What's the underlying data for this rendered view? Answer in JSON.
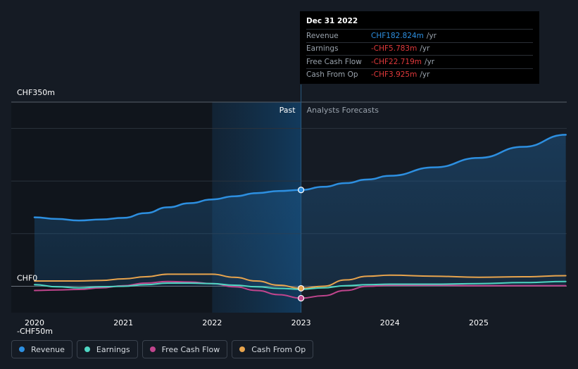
{
  "chart_data": {
    "type": "line",
    "x_axis_ticks": [
      "2020",
      "2021",
      "2022",
      "2023",
      "2024",
      "2025"
    ],
    "y_axis_labels": [
      "CHF350m",
      "CHF0",
      "-CHF50m"
    ],
    "ylim": [
      -50,
      350
    ],
    "xlim": [
      2019.75,
      2025.98
    ],
    "divider_year": 2023.0,
    "region_labels": {
      "past": "Past",
      "forecast": "Analysts Forecasts"
    },
    "series": [
      {
        "name": "Revenue",
        "color": "#2d8fe0",
        "points": [
          [
            2020.0,
            131
          ],
          [
            2020.25,
            128
          ],
          [
            2020.5,
            125
          ],
          [
            2020.75,
            127
          ],
          [
            2021.0,
            130
          ],
          [
            2021.25,
            139
          ],
          [
            2021.5,
            150
          ],
          [
            2021.75,
            158
          ],
          [
            2022.0,
            165
          ],
          [
            2022.25,
            171
          ],
          [
            2022.5,
            177
          ],
          [
            2022.75,
            181
          ],
          [
            2023.0,
            183
          ],
          [
            2023.25,
            189
          ],
          [
            2023.5,
            196
          ],
          [
            2023.75,
            203
          ],
          [
            2024.0,
            210
          ],
          [
            2024.5,
            226
          ],
          [
            2025.0,
            244
          ],
          [
            2025.5,
            265
          ],
          [
            2025.98,
            288
          ]
        ]
      },
      {
        "name": "Earnings",
        "color": "#4fd6c3",
        "points": [
          [
            2020.0,
            3
          ],
          [
            2020.25,
            -1
          ],
          [
            2020.5,
            -3
          ],
          [
            2020.75,
            -1
          ],
          [
            2021.0,
            0
          ],
          [
            2021.25,
            3
          ],
          [
            2021.5,
            6
          ],
          [
            2021.75,
            6
          ],
          [
            2022.0,
            5
          ],
          [
            2022.25,
            2
          ],
          [
            2022.5,
            -1
          ],
          [
            2022.75,
            -4
          ],
          [
            2023.0,
            -5.8
          ],
          [
            2023.25,
            -3
          ],
          [
            2023.5,
            1
          ],
          [
            2023.75,
            3
          ],
          [
            2024.0,
            4
          ],
          [
            2024.5,
            4
          ],
          [
            2025.0,
            5
          ],
          [
            2025.5,
            7
          ],
          [
            2025.98,
            9
          ]
        ]
      },
      {
        "name": "Free Cash Flow",
        "color": "#c0458d",
        "points": [
          [
            2020.0,
            -8
          ],
          [
            2020.25,
            -7
          ],
          [
            2020.5,
            -6
          ],
          [
            2020.75,
            -3
          ],
          [
            2021.0,
            1
          ],
          [
            2021.25,
            6
          ],
          [
            2021.5,
            9
          ],
          [
            2021.75,
            8
          ],
          [
            2022.0,
            5
          ],
          [
            2022.25,
            -1
          ],
          [
            2022.5,
            -8
          ],
          [
            2022.75,
            -16
          ],
          [
            2023.0,
            -22.7
          ],
          [
            2023.25,
            -18
          ],
          [
            2023.5,
            -8
          ],
          [
            2023.75,
            0
          ],
          [
            2024.0,
            2
          ],
          [
            2024.5,
            2
          ],
          [
            2025.0,
            1
          ],
          [
            2025.5,
            1
          ],
          [
            2025.98,
            1
          ]
        ]
      },
      {
        "name": "Cash From Op",
        "color": "#e8a44d",
        "points": [
          [
            2020.0,
            10
          ],
          [
            2020.25,
            10
          ],
          [
            2020.5,
            10
          ],
          [
            2020.75,
            11
          ],
          [
            2021.0,
            14
          ],
          [
            2021.25,
            18
          ],
          [
            2021.5,
            23
          ],
          [
            2021.75,
            23
          ],
          [
            2022.0,
            23
          ],
          [
            2022.25,
            17
          ],
          [
            2022.5,
            10
          ],
          [
            2022.75,
            2
          ],
          [
            2023.0,
            -3.9
          ],
          [
            2023.25,
            0
          ],
          [
            2023.5,
            12
          ],
          [
            2023.75,
            19
          ],
          [
            2024.0,
            21
          ],
          [
            2024.5,
            19
          ],
          [
            2025.0,
            17
          ],
          [
            2025.5,
            18
          ],
          [
            2025.98,
            20
          ]
        ]
      }
    ]
  },
  "tooltip": {
    "date": "Dec 31 2022",
    "unit": "/yr",
    "rows": [
      {
        "label": "Revenue",
        "value": "CHF182.824m",
        "color": "#2d8fe0"
      },
      {
        "label": "Earnings",
        "value": "-CHF5.783m",
        "color": "#e0393b"
      },
      {
        "label": "Free Cash Flow",
        "value": "-CHF22.719m",
        "color": "#e0393b"
      },
      {
        "label": "Cash From Op",
        "value": "-CHF3.925m",
        "color": "#e0393b"
      }
    ]
  },
  "legend": [
    {
      "label": "Revenue",
      "color": "#2d8fe0"
    },
    {
      "label": "Earnings",
      "color": "#4fd6c3"
    },
    {
      "label": "Free Cash Flow",
      "color": "#c0458d"
    },
    {
      "label": "Cash From Op",
      "color": "#e8a44d"
    }
  ]
}
